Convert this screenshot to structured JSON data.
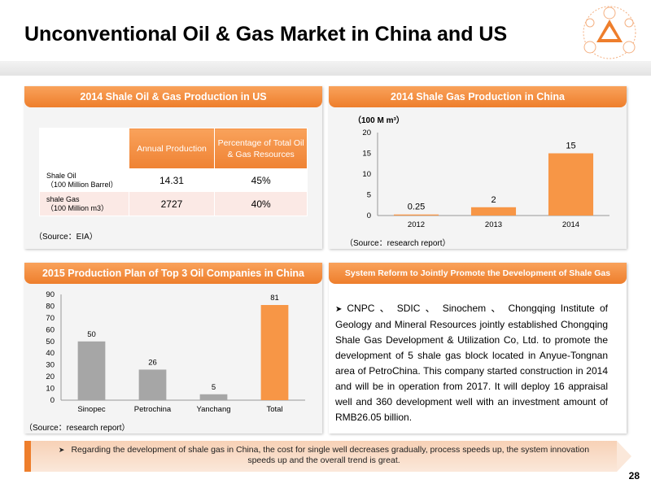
{
  "title": "Unconventional Oil & Gas Market in China and US",
  "page_number": "28",
  "panels": {
    "us_production": {
      "header": "2014 Shale Oil & Gas Production in US",
      "table": {
        "headers": [
          "",
          "Annual Production",
          "Percentage of Total Oil & Gas Resources"
        ],
        "rows": [
          {
            "label_line1": "Shale Oil",
            "label_line2": "（100 Million  Barrel）",
            "production": "14.31",
            "percentage": "45%"
          },
          {
            "label_line1": "shale Gas",
            "label_line2": "（100 Million m3）",
            "production": "2727",
            "percentage": "40%"
          }
        ]
      },
      "source": "（Source：EIA）"
    },
    "china_gas": {
      "header": "2014 Shale Gas Production in China",
      "source": "（Source：research report）"
    },
    "plan_2015": {
      "header": "2015 Production Plan of Top 3 Oil Companies in China",
      "source": "（Source：research report）"
    },
    "reform": {
      "header": "System Reform to Jointly Promote the Development of Shale Gas",
      "text": "CNPC 、 SDIC 、 Sinochem 、 Chongqing Institute of Geology and Mineral Resources jointly established Chongqing Shale Gas Development & Utilization Co, Ltd. to promote the development of 5 shale gas block located in Anyue-Tongnan area of PetroChina. This company started construction in 2014 and will be in operation from 2017. It will deploy 16 appraisal well and 360 development well with an investment amount of RMB26.05 billion."
    }
  },
  "bottom_note": "Regarding the development of shale gas in China, the cost for single well decreases gradually, process speeds up, the system innovation speeds up and the overall trend is great.",
  "colors": {
    "accent": "#ee7e2c",
    "bar_orange": "#f79646",
    "bar_gray": "#a6a6a6"
  },
  "chart_data": [
    {
      "type": "bar",
      "title": "2014 Shale Gas Production in China",
      "ylabel": "（100 M m³）",
      "categories": [
        "2012",
        "2013",
        "2014"
      ],
      "values": [
        0.25,
        2,
        15
      ],
      "data_labels": [
        "0.25",
        "2",
        "15"
      ],
      "ylim": [
        0,
        20
      ],
      "yticks": [
        0,
        5,
        10,
        15,
        20
      ]
    },
    {
      "type": "bar",
      "title": "2015 Production Plan of Top 3 Oil Companies in China",
      "categories": [
        "Sinopec",
        "Petrochina",
        "Yanchang",
        "Total"
      ],
      "values": [
        50,
        26,
        5,
        81
      ],
      "ylim": [
        0,
        90
      ],
      "yticks": [
        0,
        10,
        20,
        30,
        40,
        50,
        60,
        70,
        80,
        90
      ]
    }
  ]
}
